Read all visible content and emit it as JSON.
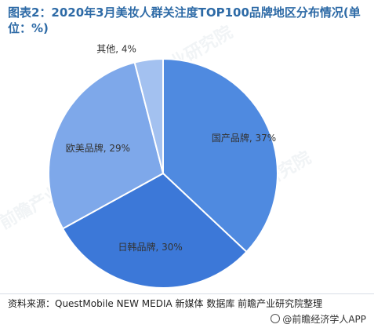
{
  "title": "图表2：2020年3月美妆人群关注度TOP100品牌地区分布情况(单位：%)",
  "source_text": "资料来源：QuestMobile NEW MEDIA 新媒体 数据库 前瞻产业研究院整理",
  "brand_text": "@前瞻经济学人APP",
  "watermark_text": "前瞻产业研究院",
  "colors": {
    "title": "#2d6aa6",
    "slice_guochan": "#4f8ae0",
    "slice_rihan": "#3c78d8",
    "slice_oumei": "#7ea8ea",
    "slice_qita": "#a3c1f0",
    "border": "#ffffff"
  },
  "chart_data": {
    "type": "pie",
    "title": "图表2：2020年3月美妆人群关注度TOP100品牌地区分布情况(单位：%)",
    "slices": [
      {
        "label": "国产品牌",
        "value": 37,
        "display": "国产品牌, 37%"
      },
      {
        "label": "日韩品牌",
        "value": 30,
        "display": "日韩品牌, 30%"
      },
      {
        "label": "欧美品牌",
        "value": 29,
        "display": "欧美品牌, 29%"
      },
      {
        "label": "其他",
        "value": 4,
        "display": "其他, 4%"
      }
    ],
    "start_angle": "12 o'clock",
    "direction": "clockwise"
  }
}
